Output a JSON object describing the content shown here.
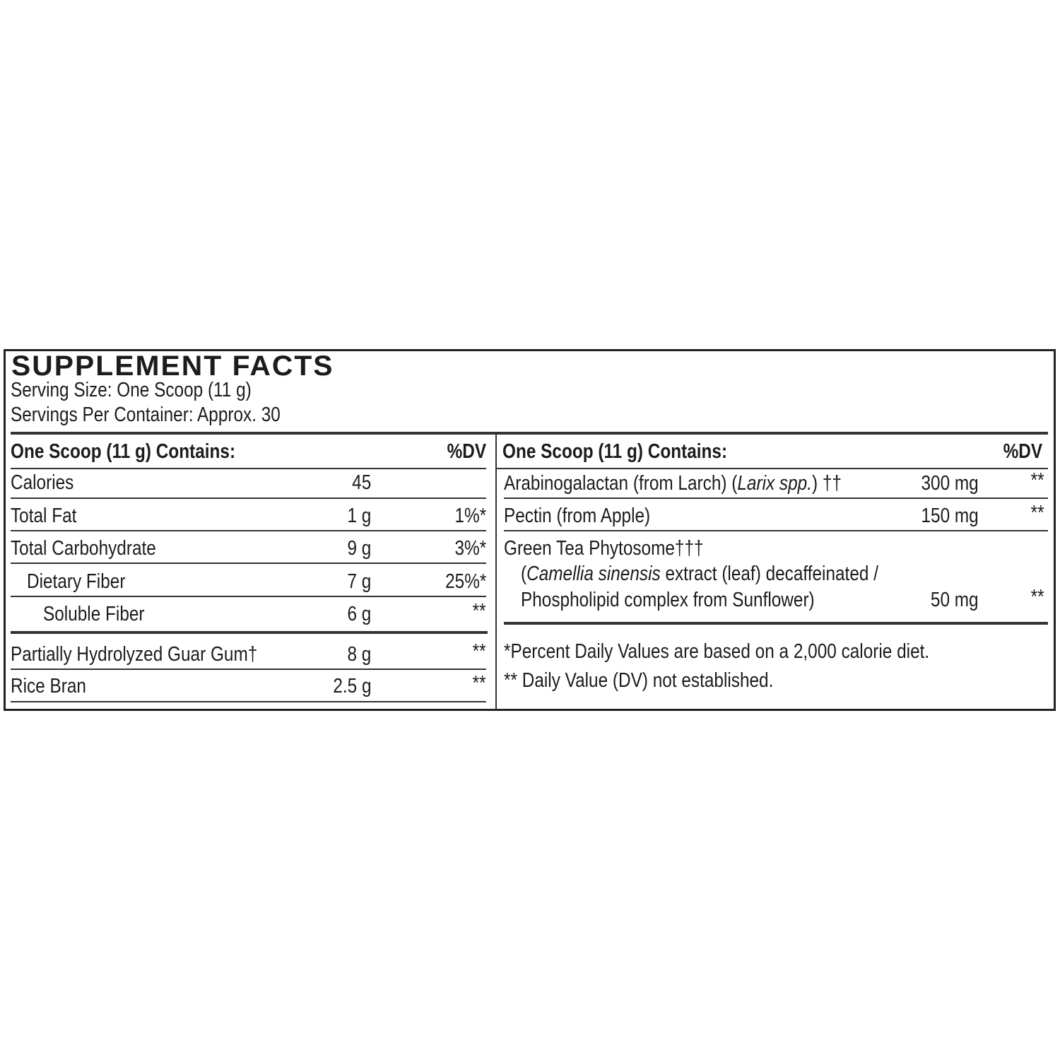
{
  "title": "SUPPLEMENT FACTS",
  "serving_size": "Serving Size: One Scoop (11 g)",
  "servings_per_container": "Servings Per Container: Approx. 30",
  "left": {
    "header": {
      "label": "One Scoop (11 g) Contains:",
      "dv": "%DV"
    },
    "rows": [
      {
        "name": "Calories",
        "amount": "45",
        "dv": ""
      },
      {
        "name": "Total Fat",
        "amount": "1 g",
        "dv": "1%*"
      },
      {
        "name": "Total Carbohydrate",
        "amount": "9 g",
        "dv": "3%*"
      },
      {
        "name": "Dietary Fiber",
        "amount": "7 g",
        "dv": "25%*"
      },
      {
        "name": "Soluble Fiber",
        "amount": "6 g",
        "dv": "**"
      },
      {
        "name": "Partially Hydrolyzed Guar Gum†",
        "amount": "8 g",
        "dv": "**"
      },
      {
        "name": "Rice Bran",
        "amount": "2.5 g",
        "dv": "**"
      }
    ]
  },
  "right": {
    "header": {
      "label": "One Scoop (11 g) Contains:",
      "dv": "%DV"
    },
    "rows": [
      {
        "name_pre": "Arabinogalactan (from Larch) (",
        "name_italic": "Larix spp.",
        "name_post": ") ††",
        "amount": "300 mg",
        "dv": "**"
      },
      {
        "name": "Pectin (from Apple)",
        "amount": "150 mg",
        "dv": "**"
      },
      {
        "name": "Green Tea Phytosome†††",
        "line2_pre": "(",
        "line2_italic": "Camellia sinensis",
        "line2_post": " extract (leaf) decaffeinated /",
        "line3": "Phospholipid complex from Sunflower)",
        "amount": "50 mg",
        "dv": "**"
      }
    ],
    "footnotes": [
      "*Percent Daily Values are based on a 2,000 calorie diet.",
      "** Daily Value (DV) not established."
    ]
  }
}
